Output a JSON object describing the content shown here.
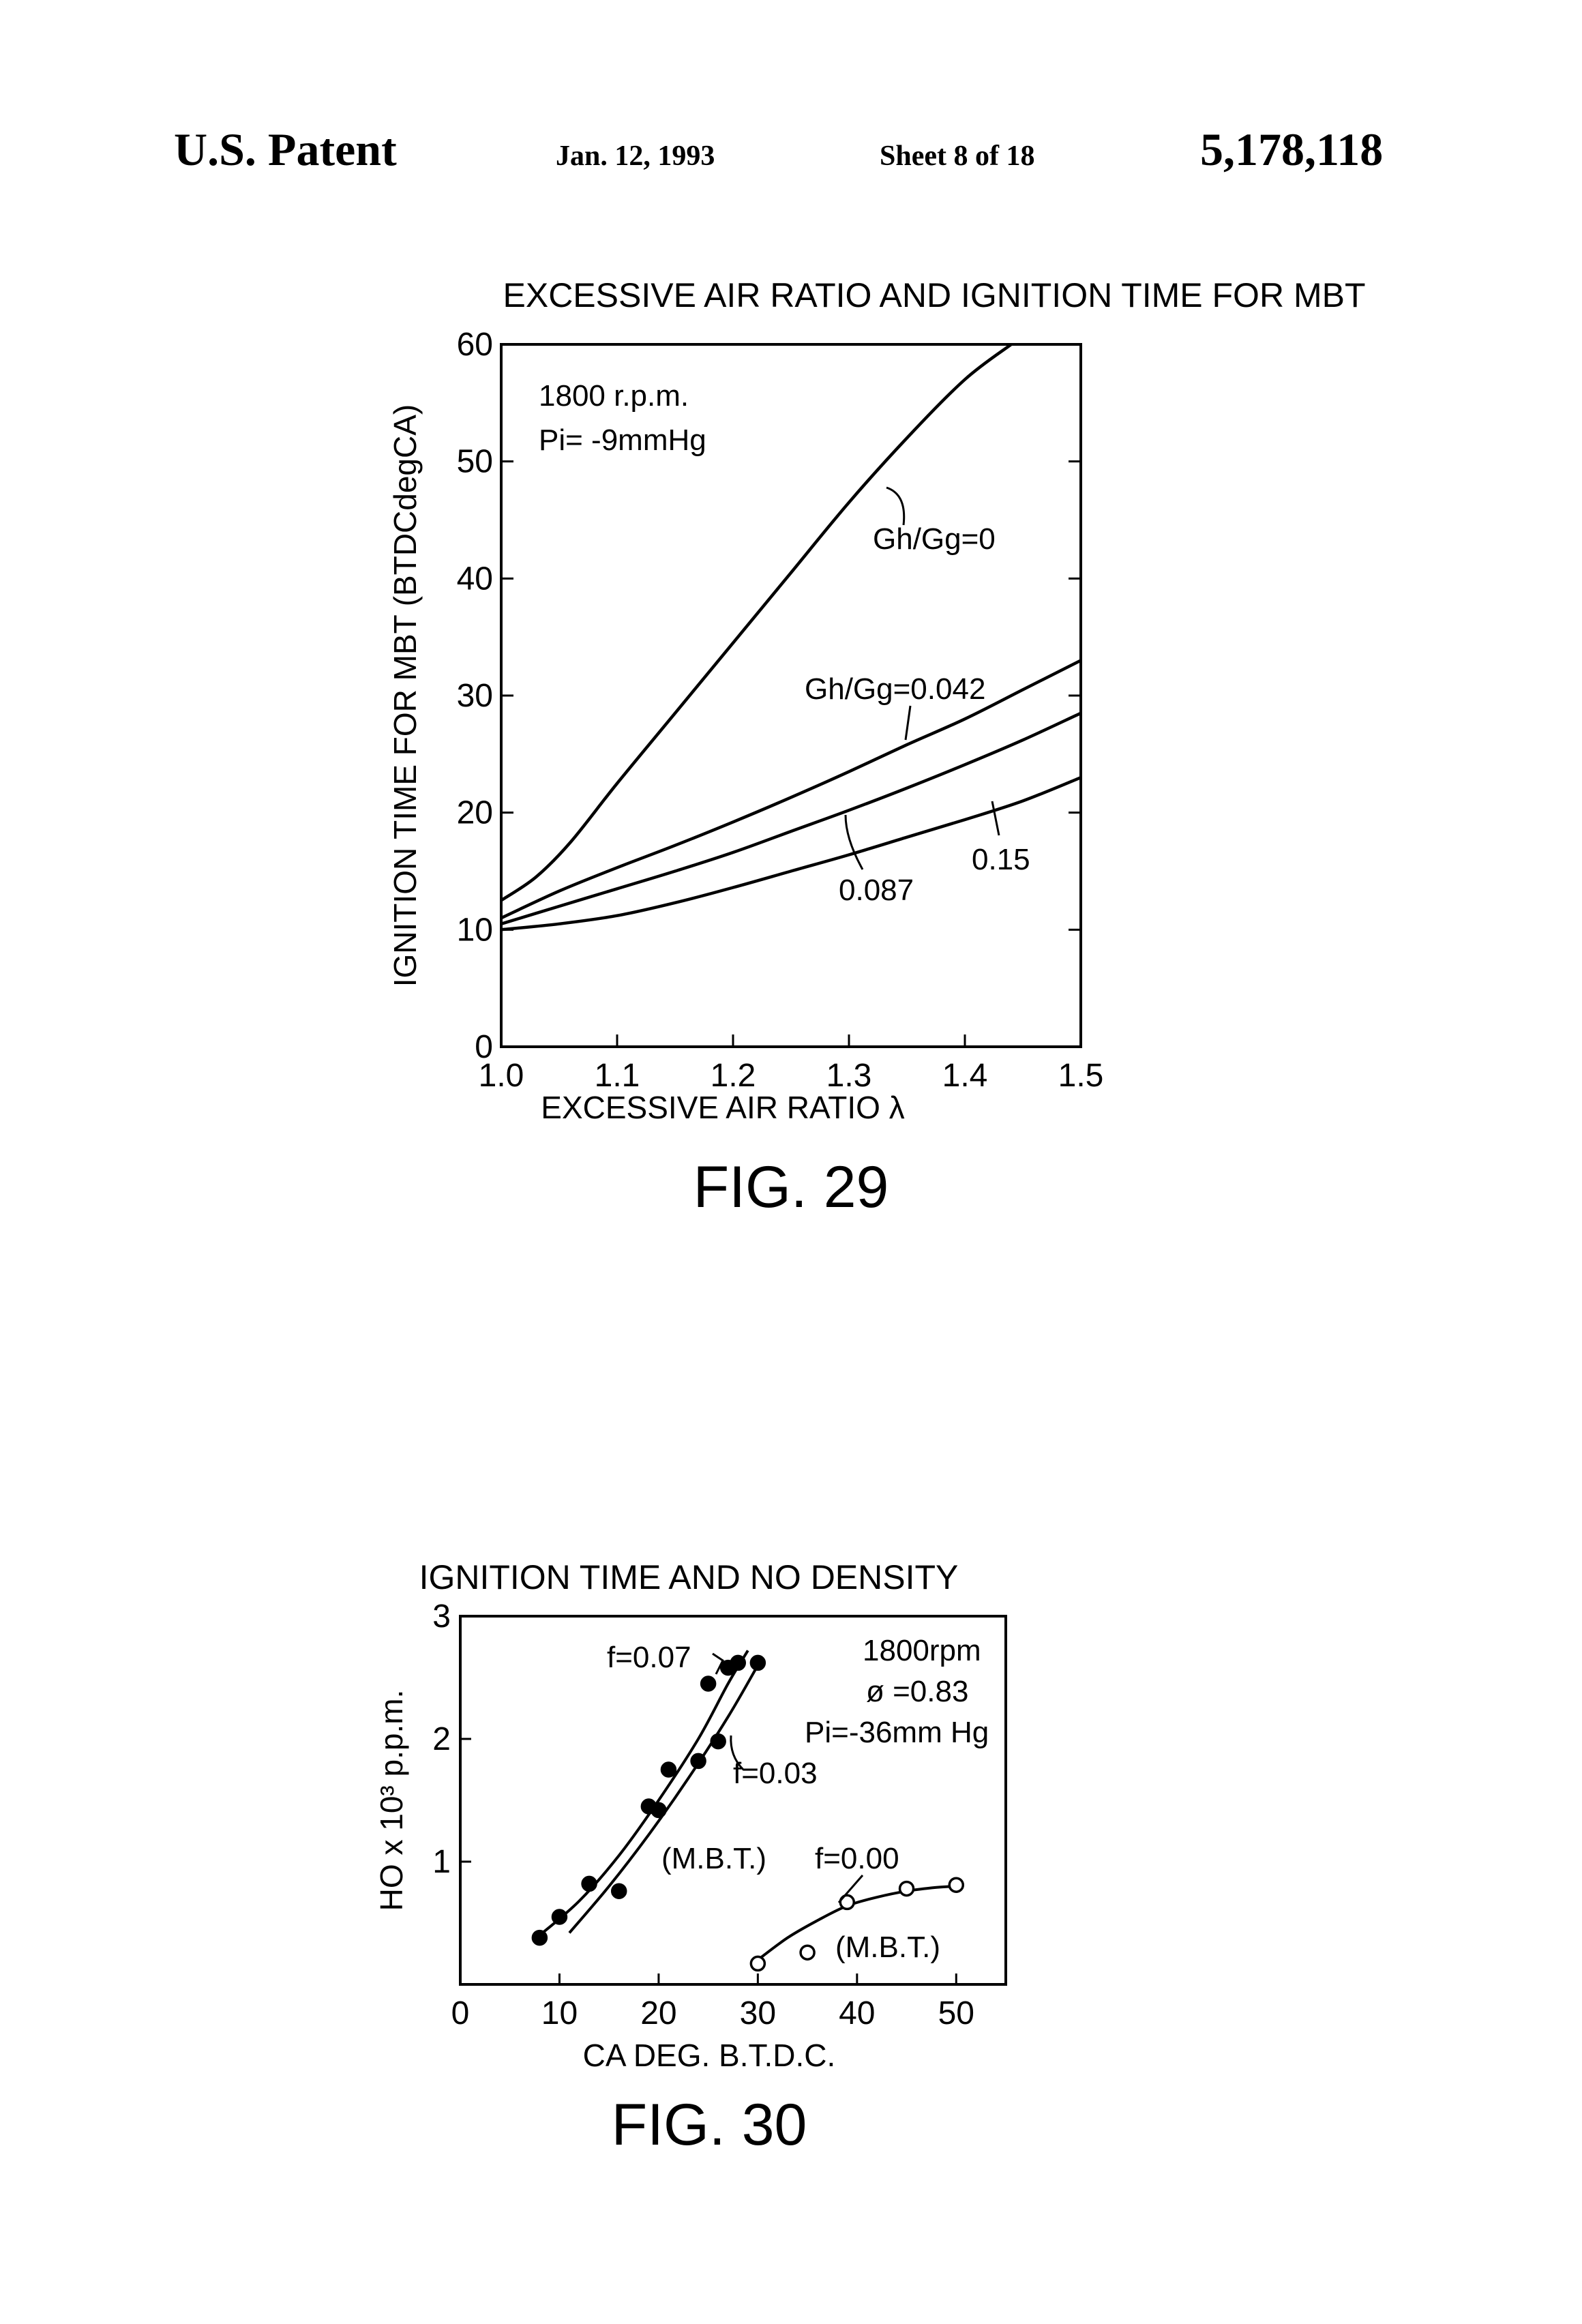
{
  "header": {
    "left": "U.S. Patent",
    "date": "Jan. 12, 1993",
    "sheet": "Sheet 8 of 18",
    "patent_number": "5,178,118"
  },
  "figures": [
    {
      "label": "FIG. 29"
    },
    {
      "label": "FIG. 30"
    }
  ],
  "chart_data": [
    {
      "type": "line",
      "title": "EXCESSIVE AIR RATIO AND IGNITION TIME FOR MBT",
      "xlabel": "EXCESSIVE AIR RATIO λ",
      "ylabel": "IGNITION TIME FOR MBT (BTDCdegCA)",
      "xlim": [
        1.0,
        1.5
      ],
      "ylim": [
        0,
        60
      ],
      "xticks": [
        "1.0",
        "1.1",
        "1.2",
        "1.3",
        "1.4",
        "1.5"
      ],
      "yticks": [
        "0",
        "10",
        "20",
        "30",
        "40",
        "50",
        "60"
      ],
      "grid": false,
      "annotations": [
        "1800 r.p.m.",
        "Pi= -9mmHg"
      ],
      "series": [
        {
          "name": "Gh/Gg=0",
          "x": [
            1.0,
            1.03,
            1.06,
            1.1,
            1.15,
            1.2,
            1.25,
            1.3,
            1.35,
            1.4,
            1.44
          ],
          "y": [
            12.5,
            14.5,
            17.5,
            22.5,
            28.5,
            34.5,
            40.5,
            46.5,
            52,
            57,
            60
          ]
        },
        {
          "name": "Gh/Gg=0.042",
          "x": [
            1.0,
            1.05,
            1.1,
            1.15,
            1.2,
            1.25,
            1.3,
            1.35,
            1.4,
            1.45,
            1.5
          ],
          "y": [
            11,
            13.3,
            15.3,
            17.2,
            19.2,
            21.3,
            23.5,
            25.8,
            28,
            30.5,
            33
          ]
        },
        {
          "name": "0.087",
          "x": [
            1.0,
            1.05,
            1.1,
            1.15,
            1.2,
            1.25,
            1.3,
            1.35,
            1.4,
            1.45,
            1.5
          ],
          "y": [
            10.5,
            12,
            13.5,
            15,
            16.6,
            18.4,
            20.2,
            22.1,
            24.1,
            26.2,
            28.5
          ]
        },
        {
          "name": "0.15",
          "x": [
            1.0,
            1.05,
            1.1,
            1.15,
            1.2,
            1.25,
            1.3,
            1.35,
            1.4,
            1.45,
            1.5
          ],
          "y": [
            10,
            10.5,
            11.2,
            12.3,
            13.6,
            15,
            16.4,
            17.9,
            19.4,
            21,
            23
          ]
        }
      ]
    },
    {
      "type": "scatter",
      "title": "IGNITION TIME AND NO DENSITY",
      "xlabel": "CA DEG. B.T.D.C.",
      "ylabel": "HO x 10³ p.p.m.",
      "xlim": [
        0,
        55
      ],
      "ylim": [
        0,
        3
      ],
      "xticks": [
        "0",
        "10",
        "20",
        "30",
        "40",
        "50"
      ],
      "yticks": [
        "1",
        "2",
        "3"
      ],
      "grid": false,
      "annotations": [
        "1800rpm",
        "ø =0.83",
        "Pi=-36mm Hg",
        "(M.B.T.)",
        "(M.B.T.)"
      ],
      "series": [
        {
          "name": "f=0.07",
          "marker": "filled",
          "x": [
            8,
            10,
            13,
            19,
            21,
            25,
            27,
            28
          ],
          "y": [
            0.38,
            0.55,
            0.82,
            1.45,
            1.75,
            2.45,
            2.58,
            2.62
          ],
          "curve_x": [
            8,
            12,
            16,
            20,
            24,
            27,
            29
          ],
          "curve_y": [
            0.4,
            0.68,
            1.05,
            1.5,
            2.0,
            2.45,
            2.72
          ]
        },
        {
          "name": "f=0.03",
          "marker": "filled",
          "x": [
            16,
            20,
            24,
            26,
            30
          ],
          "y": [
            0.76,
            1.42,
            1.82,
            1.98,
            2.62
          ],
          "curve_x": [
            11,
            15,
            19,
            23,
            27,
            30
          ],
          "curve_y": [
            0.42,
            0.8,
            1.22,
            1.68,
            2.18,
            2.6
          ]
        },
        {
          "name": "f=0.00",
          "marker": "open",
          "x": [
            30,
            35,
            39,
            45,
            50
          ],
          "y": [
            0.17,
            0.26,
            0.67,
            0.78,
            0.81
          ],
          "curve_x": [
            30,
            33,
            36,
            39,
            42,
            45,
            48,
            50
          ],
          "curve_y": [
            0.2,
            0.38,
            0.52,
            0.64,
            0.71,
            0.76,
            0.79,
            0.8
          ]
        }
      ]
    }
  ]
}
